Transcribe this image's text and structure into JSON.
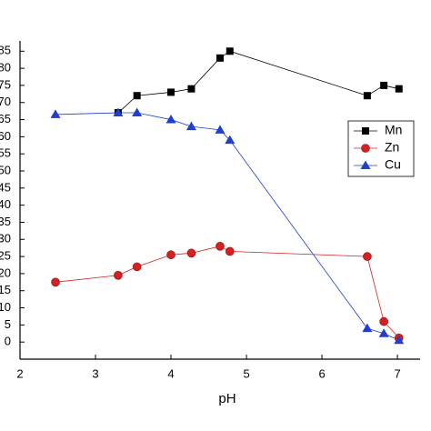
{
  "chart_data": {
    "type": "line",
    "xlabel": "pH",
    "xlim": [
      2,
      7.3
    ],
    "xticks": [
      2,
      3,
      4,
      5,
      6,
      7
    ],
    "ylim": [
      -5,
      88
    ],
    "yticks": [
      0,
      5,
      10,
      15,
      20,
      25,
      30,
      35,
      40,
      45,
      50,
      55,
      60,
      65,
      70,
      75,
      80,
      85
    ],
    "legend": "upper right",
    "series": [
      {
        "name": "Mn",
        "color": "#000000",
        "marker": "square",
        "x": [
          3.3,
          3.55,
          4.0,
          4.27,
          4.65,
          4.78,
          6.6,
          6.82,
          7.02
        ],
        "values": [
          67,
          72,
          73,
          74,
          83,
          85,
          72,
          75,
          74
        ]
      },
      {
        "name": "Zn",
        "color": "#d42020",
        "marker": "circle",
        "x": [
          2.47,
          3.3,
          3.55,
          4.0,
          4.27,
          4.65,
          4.78,
          6.6,
          6.82,
          7.02
        ],
        "values": [
          17.5,
          19.5,
          22,
          25.5,
          26,
          28,
          26.5,
          25,
          6,
          1.2
        ]
      },
      {
        "name": "Cu",
        "color": "#1f3fcc",
        "marker": "triangle",
        "x": [
          2.47,
          3.3,
          3.55,
          4.0,
          4.27,
          4.65,
          4.78,
          6.6,
          6.82,
          7.02
        ],
        "values": [
          66.5,
          67,
          67,
          65,
          63,
          62,
          59,
          4,
          2.5,
          0.5
        ]
      }
    ]
  }
}
